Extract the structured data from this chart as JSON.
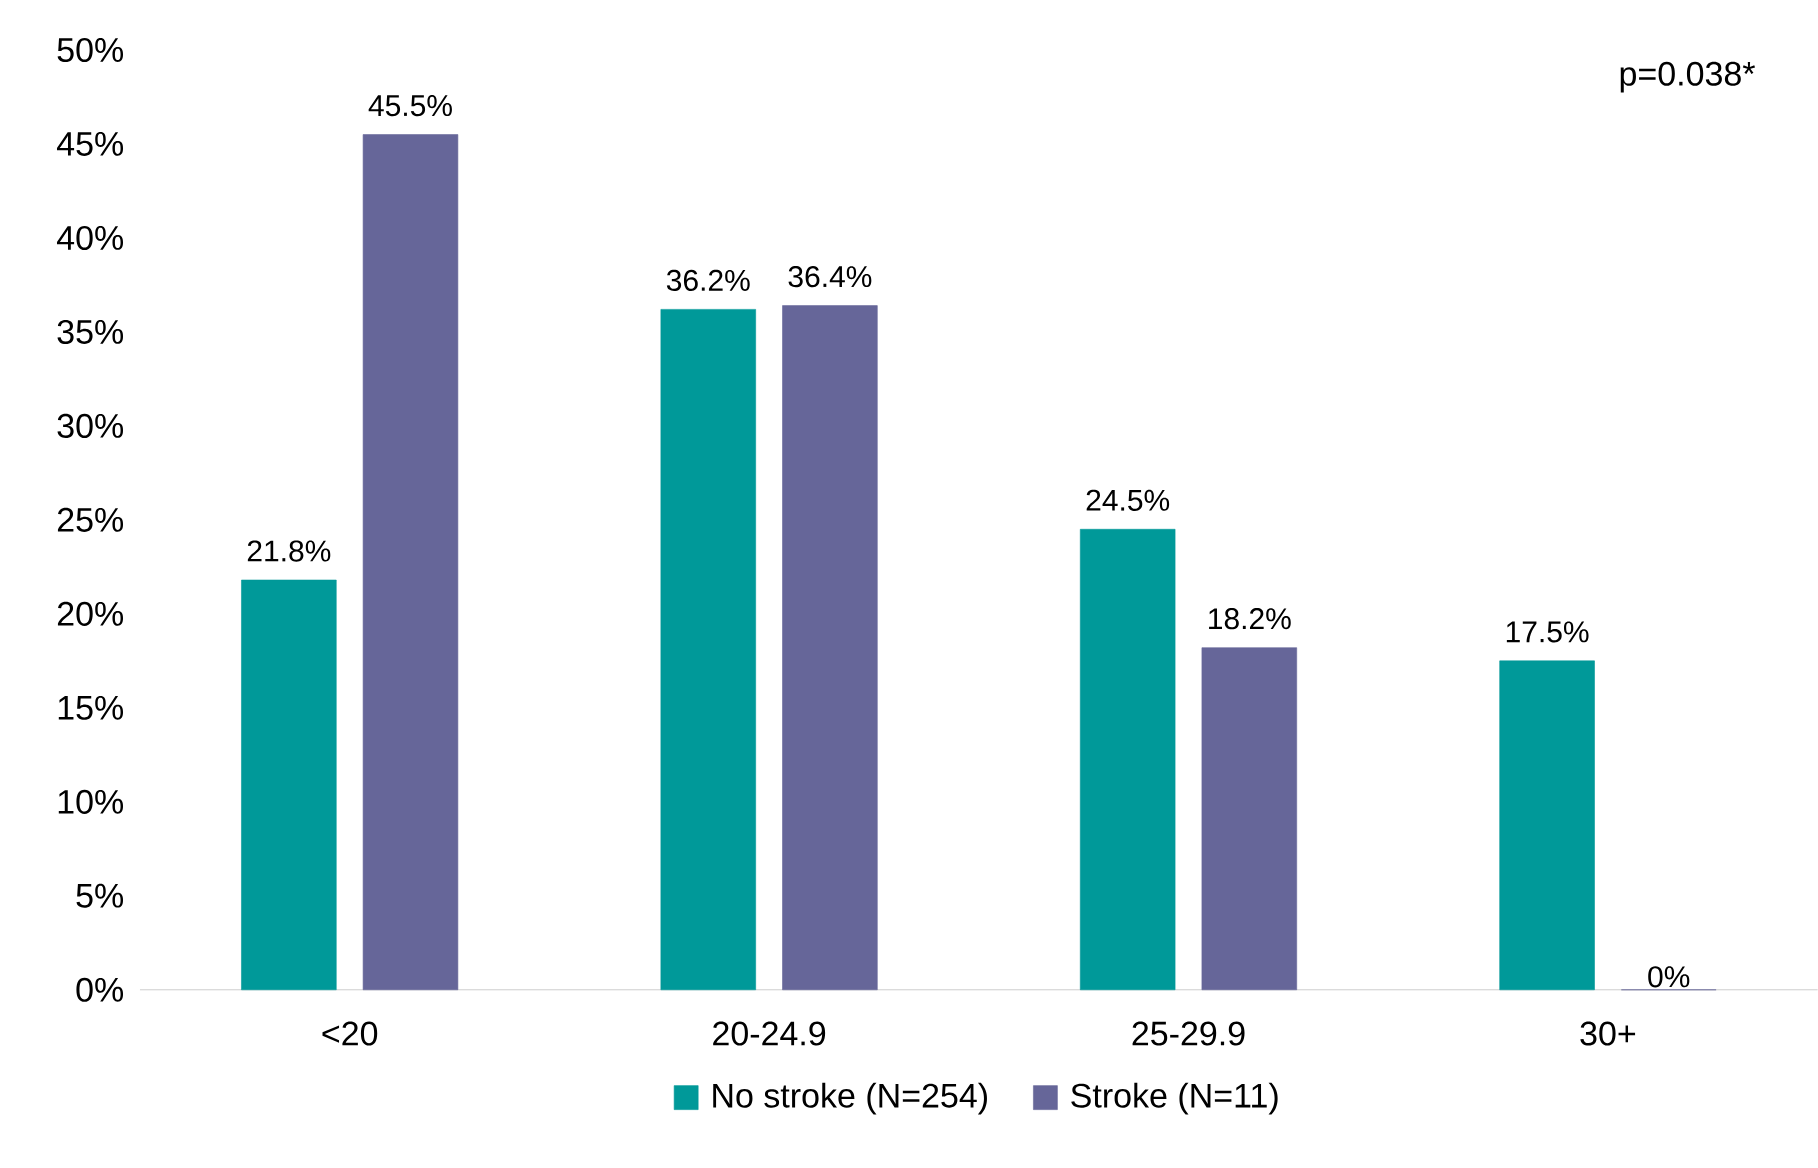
{
  "chart_data": {
    "type": "bar",
    "categories": [
      "<20",
      "20-24.9",
      "25-29.9",
      "30+"
    ],
    "series": [
      {
        "name": "No stroke (N=254)",
        "color": "#009999",
        "values": [
          21.8,
          36.2,
          24.5,
          17.5
        ],
        "value_labels": [
          "21.8%",
          "36.2%",
          "24.5%",
          "17.5%"
        ]
      },
      {
        "name": "Stroke (N=11)",
        "color": "#666699",
        "values": [
          45.5,
          36.4,
          18.2,
          0
        ],
        "value_labels": [
          "45.5%",
          "36.4%",
          "18.2%",
          "0%"
        ]
      }
    ],
    "ylim": [
      0,
      50
    ],
    "yticks": [
      {
        "value": 0,
        "label": "0%"
      },
      {
        "value": 5,
        "label": "5%"
      },
      {
        "value": 10,
        "label": "10%"
      },
      {
        "value": 15,
        "label": "15%"
      },
      {
        "value": 20,
        "label": "20%"
      },
      {
        "value": 25,
        "label": "25%"
      },
      {
        "value": 30,
        "label": "30%"
      },
      {
        "value": 35,
        "label": "35%"
      },
      {
        "value": 40,
        "label": "40%"
      },
      {
        "value": 45,
        "label": "45%"
      },
      {
        "value": 50,
        "label": "50%"
      }
    ],
    "legend": "bottom",
    "annotations": [
      "p=0.038*"
    ]
  }
}
